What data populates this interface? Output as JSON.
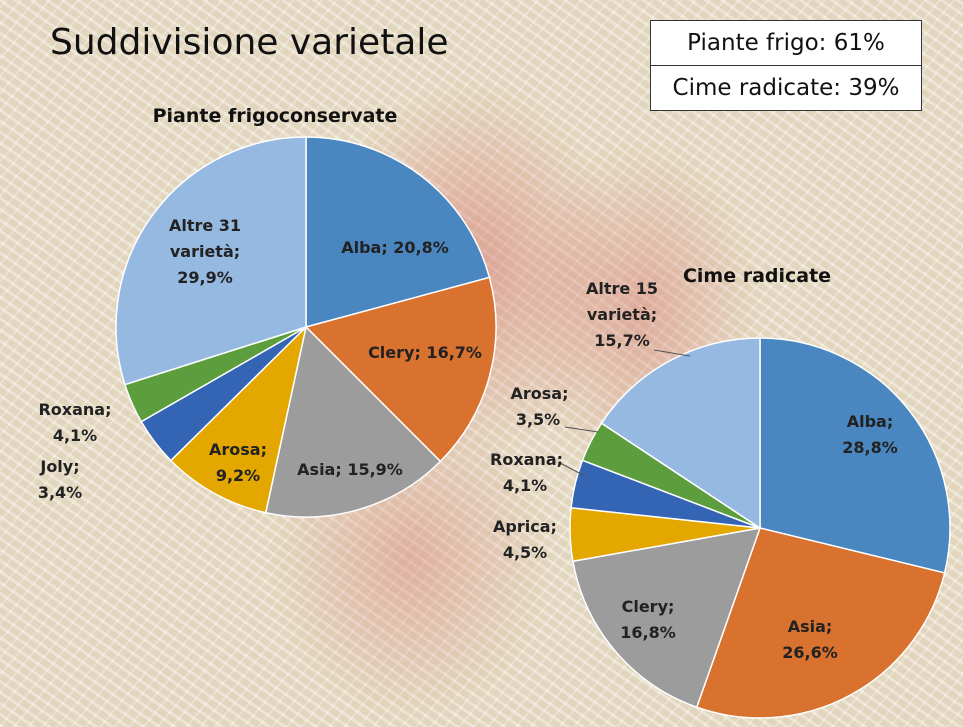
{
  "title": "Suddivisione varietale",
  "summary": [
    "Piante frigo: 61%",
    "Cime radicate: 39%"
  ],
  "chart_data": [
    {
      "type": "pie",
      "title": "Piante frigoconservate",
      "values": [
        20.8,
        16.7,
        15.9,
        9.2,
        4.1,
        3.4,
        29.9
      ],
      "value_labels": [
        "Alba; 20,8%",
        "Clery; 16,7%",
        "Asia; 15,9%",
        "Arosa; 9,2%",
        "Roxana; 4,1%",
        "Joly; 3,4%",
        "Altre 31 varietà; 29,9%"
      ],
      "colors": [
        "#4a86c0",
        "#d9712f",
        "#9c9c9c",
        "#e3a700",
        "#3464b4",
        "#5c9e3e",
        "#95b9e0"
      ]
    },
    {
      "type": "pie",
      "title": "Cime radicate",
      "values": [
        28.8,
        26.6,
        16.8,
        4.5,
        4.1,
        3.5,
        15.7
      ],
      "value_labels": [
        "Alba; 28,8%",
        "Asia; 26,6%",
        "Clery; 16,8%",
        "Aprica; 4,5%",
        "Roxana; 4,1%",
        "Arosa; 3,5%",
        "Altre 15 varietà; 15,7%"
      ],
      "colors": [
        "#4a86c0",
        "#d9712f",
        "#9c9c9c",
        "#e3a700",
        "#3464b4",
        "#5c9e3e",
        "#95b9e0"
      ]
    }
  ]
}
